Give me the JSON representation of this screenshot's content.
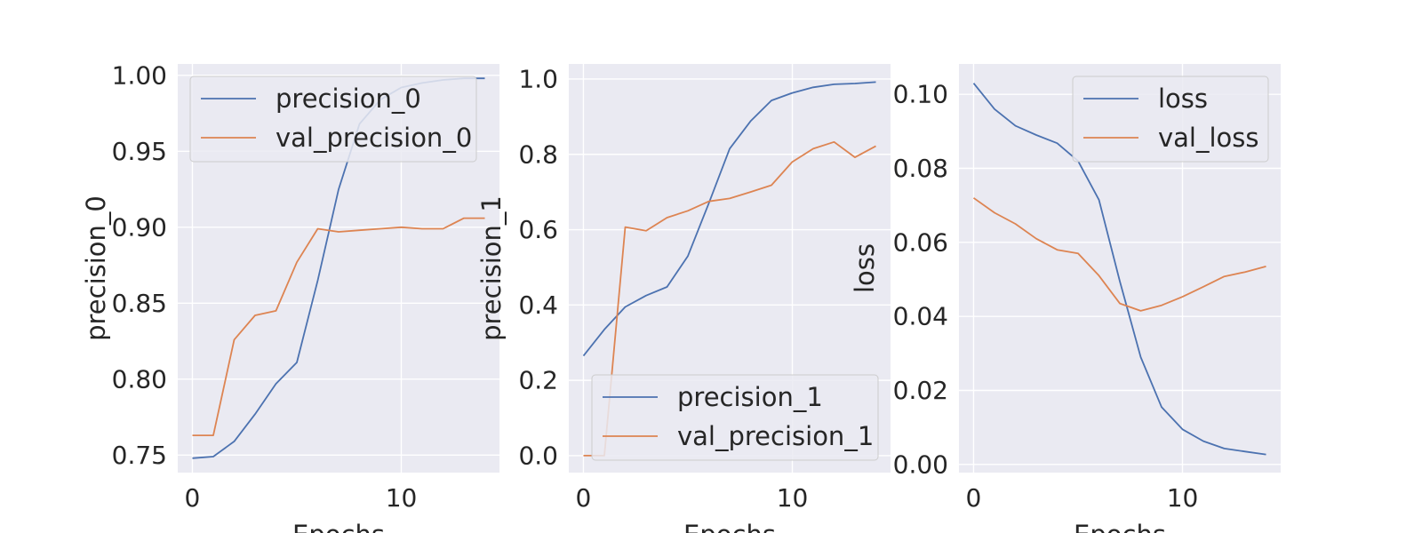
{
  "colors": {
    "series_1": "#4c72b0",
    "series_2": "#dd8452",
    "panel_bg": "#eaeaf2",
    "grid": "#ffffff"
  },
  "chart_data": [
    {
      "type": "line",
      "xlabel": "Epochs",
      "ylabel": "precision_0",
      "xlim": [
        -0.7,
        14.7
      ],
      "ylim": [
        0.7385,
        1.0075
      ],
      "xticks": [
        0,
        10
      ],
      "yticks": [
        0.75,
        0.8,
        0.85,
        0.9,
        0.95,
        1.0
      ],
      "ytick_decimals": 2,
      "legend_position": "upper-left",
      "grid": true,
      "x": [
        0,
        1,
        2,
        3,
        4,
        5,
        6,
        7,
        8,
        9,
        10,
        11,
        12,
        13,
        14
      ],
      "series": [
        {
          "name": "precision_0",
          "values": [
            0.748,
            0.749,
            0.759,
            0.777,
            0.797,
            0.811,
            0.865,
            0.925,
            0.968,
            0.984,
            0.992,
            0.995,
            0.997,
            0.998,
            0.998
          ]
        },
        {
          "name": "val_precision_0",
          "values": [
            0.763,
            0.763,
            0.826,
            0.842,
            0.845,
            0.877,
            0.899,
            0.897,
            0.898,
            0.899,
            0.9,
            0.899,
            0.899,
            0.906,
            0.906
          ]
        }
      ]
    },
    {
      "type": "line",
      "xlabel": "Epochs",
      "ylabel": "precision_1",
      "xlim": [
        -0.7,
        14.7
      ],
      "ylim": [
        -0.045,
        1.04
      ],
      "xticks": [
        0,
        10
      ],
      "yticks": [
        0.0,
        0.2,
        0.4,
        0.6,
        0.8,
        1.0
      ],
      "ytick_decimals": 1,
      "legend_position": "lower-right",
      "grid": true,
      "x": [
        0,
        1,
        2,
        3,
        4,
        5,
        6,
        7,
        8,
        9,
        10,
        11,
        12,
        13,
        14
      ],
      "series": [
        {
          "name": "precision_1",
          "values": [
            0.265,
            0.335,
            0.395,
            0.425,
            0.448,
            0.53,
            0.67,
            0.815,
            0.888,
            0.943,
            0.963,
            0.978,
            0.986,
            0.988,
            0.992
          ]
        },
        {
          "name": "val_precision_1",
          "values": [
            0.0,
            0.0,
            0.607,
            0.597,
            0.632,
            0.65,
            0.675,
            0.683,
            0.7,
            0.718,
            0.78,
            0.815,
            0.833,
            0.792,
            0.822
          ]
        }
      ]
    },
    {
      "type": "line",
      "xlabel": "Epochs",
      "ylabel": "loss",
      "xlim": [
        -0.7,
        14.7
      ],
      "ylim": [
        -0.0022,
        0.1082
      ],
      "xticks": [
        0,
        10
      ],
      "yticks": [
        0.0,
        0.02,
        0.04,
        0.06,
        0.08,
        0.1
      ],
      "ytick_decimals": 2,
      "legend_position": "upper-right",
      "grid": true,
      "x": [
        0,
        1,
        2,
        3,
        4,
        5,
        6,
        7,
        8,
        9,
        10,
        11,
        12,
        13,
        14
      ],
      "series": [
        {
          "name": "loss",
          "values": [
            0.103,
            0.096,
            0.0915,
            0.089,
            0.0868,
            0.082,
            0.0715,
            0.0495,
            0.029,
            0.0155,
            0.0095,
            0.0063,
            0.0043,
            0.0035,
            0.0027
          ]
        },
        {
          "name": "val_loss",
          "values": [
            0.072,
            0.068,
            0.065,
            0.061,
            0.058,
            0.057,
            0.051,
            0.0435,
            0.0415,
            0.043,
            0.0453,
            0.048,
            0.0508,
            0.052,
            0.0535
          ]
        }
      ]
    }
  ]
}
